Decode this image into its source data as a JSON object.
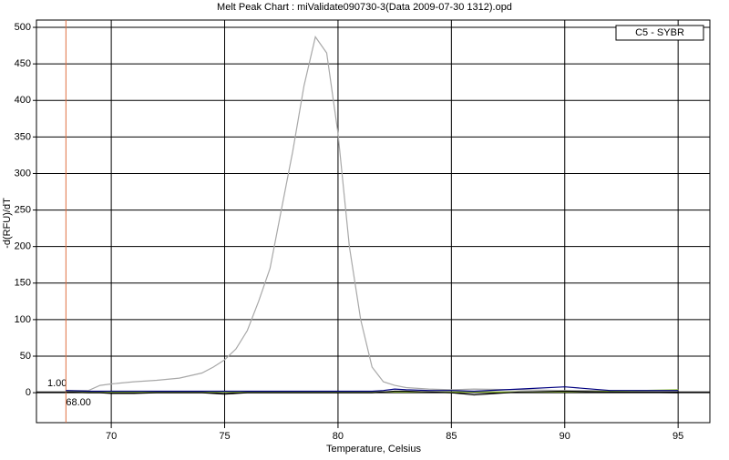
{
  "chart_data": {
    "type": "line",
    "title": "Melt Peak Chart : miValidate090730-3(Data 2009-07-30 1312).opd",
    "x_label": "Temperature, Celsius",
    "y_label": "-d(RFU)/dT",
    "x": [
      68,
      69,
      69.5,
      70,
      71,
      72,
      73,
      74,
      74.5,
      75,
      75.5,
      76,
      76.5,
      77,
      77.5,
      78,
      78.5,
      79,
      79.5,
      80,
      80.5,
      81,
      81.5,
      82,
      82.5,
      83,
      84,
      85,
      86,
      88,
      90,
      92,
      95
    ],
    "series": [
      {
        "name": "C5 - SYBR",
        "color": "#a8a8a8",
        "values": [
          3,
          3,
          10,
          12,
          15,
          17,
          20,
          27,
          35,
          45,
          60,
          85,
          125,
          170,
          250,
          330,
          420,
          487,
          465,
          355,
          200,
          100,
          35,
          15,
          10,
          7,
          5,
          4,
          5,
          4,
          3,
          3,
          3
        ]
      },
      {
        "color": "#99cc33",
        "values": [
          1,
          1,
          1,
          1,
          1,
          1,
          1,
          1,
          1,
          1,
          1,
          1,
          1,
          1,
          1,
          1,
          1,
          1,
          1,
          1,
          1,
          1,
          1,
          1,
          1,
          1,
          1,
          1,
          1,
          1,
          1,
          2,
          4
        ]
      },
      {
        "color": "#000080",
        "values": [
          3,
          2,
          2,
          2,
          2,
          2,
          2,
          2,
          2,
          2,
          2,
          2,
          2,
          2,
          2,
          2,
          2,
          2,
          2,
          2,
          2,
          2,
          2,
          3,
          5,
          4,
          3,
          3,
          2,
          5,
          8,
          3,
          3
        ]
      },
      {
        "color": "#000000",
        "values": [
          1,
          0,
          0,
          -1,
          -1,
          0,
          0,
          0,
          -1,
          -2,
          -1,
          0,
          0,
          0,
          0,
          0,
          0,
          0,
          0,
          0,
          0,
          0,
          0,
          1,
          2,
          2,
          1,
          0,
          -3,
          1,
          2,
          1,
          0
        ]
      }
    ],
    "xlim": [
      66.7,
      96.4
    ],
    "ylim": [
      -41,
      510
    ],
    "xticks": [
      70,
      75,
      80,
      85,
      90,
      95
    ],
    "yticks": [
      0,
      50,
      100,
      150,
      200,
      250,
      300,
      350,
      400,
      450,
      500
    ],
    "grid": true,
    "legend": "upper right",
    "threshold": {
      "value": 1,
      "label": "1.00"
    },
    "marker": {
      "value": 68,
      "label": "68.00"
    }
  }
}
